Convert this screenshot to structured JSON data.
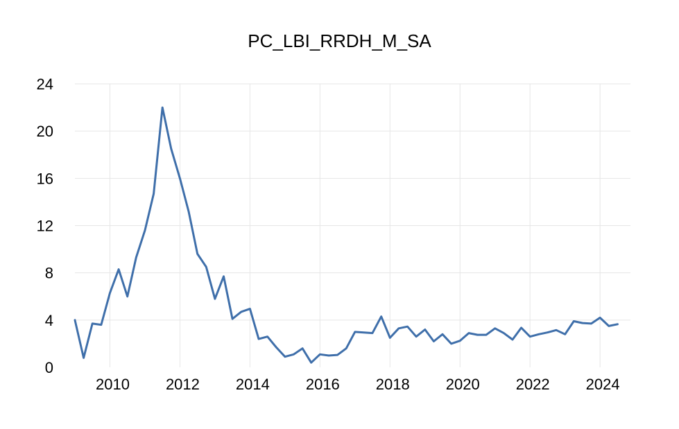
{
  "chart_data": {
    "type": "line",
    "title": "PC_LBI_RRDH_M_SA",
    "xlabel": "",
    "ylabel": "",
    "xlim": [
      2009.0,
      2024.75
    ],
    "ylim": [
      0,
      24
    ],
    "y_ticks": [
      "0",
      "4",
      "8",
      "12",
      "16",
      "20",
      "24"
    ],
    "x_ticks": [
      "2010",
      "2012",
      "2014",
      "2016",
      "2018",
      "2020",
      "2022",
      "2024"
    ],
    "grid": true,
    "legend": "none",
    "series": [
      {
        "color": "#3f6faa",
        "x": [
          2009.0,
          2009.25,
          2009.5,
          2009.75,
          2010.0,
          2010.25,
          2010.5,
          2010.75,
          2011.0,
          2011.25,
          2011.5,
          2011.75,
          2012.0,
          2012.25,
          2012.5,
          2012.75,
          2013.0,
          2013.25,
          2013.5,
          2013.75,
          2014.0,
          2014.25,
          2014.5,
          2014.75,
          2015.0,
          2015.25,
          2015.5,
          2015.75,
          2016.0,
          2016.25,
          2016.5,
          2016.75,
          2017.0,
          2017.25,
          2017.5,
          2017.75,
          2018.0,
          2018.25,
          2018.5,
          2018.75,
          2019.0,
          2019.25,
          2019.5,
          2019.75,
          2020.0,
          2020.25,
          2020.5,
          2020.75,
          2021.0,
          2021.25,
          2021.5,
          2021.75,
          2022.0,
          2022.25,
          2022.5,
          2022.75,
          2023.0,
          2023.25,
          2023.5,
          2023.75,
          2024.0,
          2024.25,
          2024.5
        ],
        "y": [
          4.0,
          0.8,
          3.7,
          3.6,
          6.3,
          8.3,
          6.0,
          9.3,
          11.6,
          14.7,
          22.0,
          18.5,
          16.0,
          13.2,
          9.6,
          8.5,
          5.8,
          7.7,
          4.1,
          4.7,
          4.95,
          2.4,
          2.6,
          1.7,
          0.9,
          1.1,
          1.6,
          0.4,
          1.1,
          1.0,
          1.05,
          1.6,
          3.0,
          2.95,
          2.9,
          4.3,
          2.5,
          3.3,
          3.45,
          2.6,
          3.2,
          2.2,
          2.8,
          2.0,
          2.25,
          2.9,
          2.75,
          2.75,
          3.3,
          2.9,
          2.35,
          3.35,
          2.6,
          2.8,
          2.95,
          3.15,
          2.8,
          3.9,
          3.75,
          3.7,
          4.2,
          3.5,
          3.65
        ]
      }
    ]
  }
}
